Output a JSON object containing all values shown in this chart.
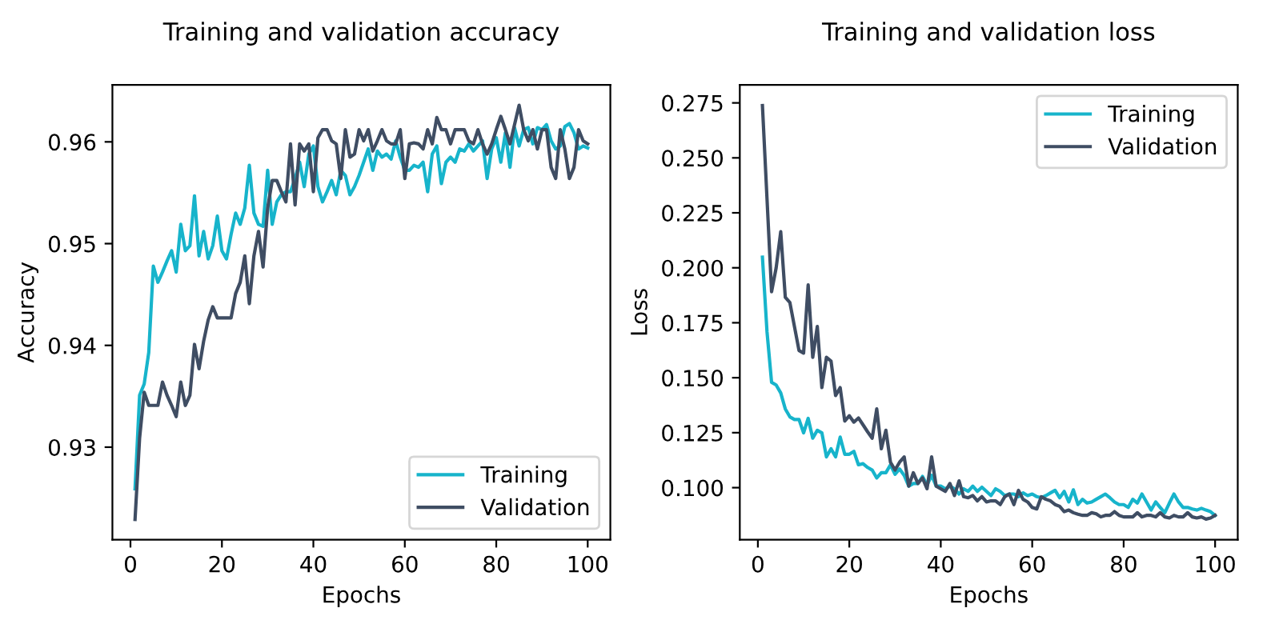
{
  "chart_data": [
    {
      "type": "line",
      "title": "Training and validation accuracy",
      "xlabel": "Epochs",
      "ylabel": "Accuracy",
      "x": [
        1,
        2,
        3,
        4,
        5,
        6,
        7,
        8,
        9,
        10,
        11,
        12,
        13,
        14,
        15,
        16,
        17,
        18,
        19,
        20,
        21,
        22,
        23,
        24,
        25,
        26,
        27,
        28,
        29,
        30,
        31,
        32,
        33,
        34,
        35,
        36,
        37,
        38,
        39,
        40,
        41,
        42,
        43,
        44,
        45,
        46,
        47,
        48,
        49,
        50,
        51,
        52,
        53,
        54,
        55,
        56,
        57,
        58,
        59,
        60,
        61,
        62,
        63,
        64,
        65,
        66,
        67,
        68,
        69,
        70,
        71,
        72,
        73,
        74,
        75,
        76,
        77,
        78,
        79,
        80,
        81,
        82,
        83,
        84,
        85,
        86,
        87,
        88,
        89,
        90,
        91,
        92,
        93,
        94,
        95,
        96,
        97,
        98,
        99,
        100
      ],
      "xlim": [
        -3.95,
        104.95
      ],
      "xticks": [
        0,
        20,
        40,
        60,
        80,
        100
      ],
      "ylim": [
        0.9209,
        0.9656
      ],
      "yticks": [
        0.93,
        0.94,
        0.95,
        0.96
      ],
      "legend": "bottom right",
      "grid": false,
      "line_style": "solid",
      "marker": "none",
      "series": [
        {
          "name": "Training",
          "color": "#17b4cb",
          "values": [
            0.9259,
            0.9351,
            0.9362,
            0.9393,
            0.9478,
            0.9462,
            0.9472,
            0.9483,
            0.9493,
            0.9472,
            0.9519,
            0.9493,
            0.9498,
            0.9547,
            0.9488,
            0.9512,
            0.9485,
            0.9498,
            0.9527,
            0.9493,
            0.9485,
            0.9509,
            0.953,
            0.9519,
            0.9535,
            0.9577,
            0.953,
            0.9519,
            0.9517,
            0.9572,
            0.9519,
            0.9541,
            0.9548,
            0.9551,
            0.9551,
            0.9564,
            0.958,
            0.9556,
            0.9588,
            0.9596,
            0.9556,
            0.9541,
            0.9551,
            0.9562,
            0.9548,
            0.9572,
            0.9567,
            0.9548,
            0.9556,
            0.9567,
            0.958,
            0.9593,
            0.9572,
            0.9591,
            0.9585,
            0.9588,
            0.9583,
            0.9601,
            0.9585,
            0.9572,
            0.9572,
            0.9577,
            0.9575,
            0.958,
            0.9551,
            0.9588,
            0.9596,
            0.9559,
            0.958,
            0.9585,
            0.958,
            0.9593,
            0.9591,
            0.9598,
            0.9591,
            0.9596,
            0.9601,
            0.9564,
            0.9593,
            0.9604,
            0.958,
            0.9609,
            0.9575,
            0.9614,
            0.9596,
            0.9612,
            0.9614,
            0.9598,
            0.9614,
            0.9612,
            0.9617,
            0.9601,
            0.9593,
            0.9596,
            0.9615,
            0.9618,
            0.9609,
            0.9593,
            0.9596,
            0.9594
          ]
        },
        {
          "name": "Validation",
          "color": "#3f4d63",
          "values": [
            0.9229,
            0.9309,
            0.9354,
            0.9341,
            0.9341,
            0.9341,
            0.9364,
            0.9351,
            0.9341,
            0.933,
            0.9364,
            0.9341,
            0.9351,
            0.9401,
            0.9377,
            0.9404,
            0.9425,
            0.9438,
            0.9427,
            0.9427,
            0.9427,
            0.9427,
            0.9451,
            0.9462,
            0.9488,
            0.9441,
            0.9488,
            0.9512,
            0.9477,
            0.9535,
            0.9562,
            0.9562,
            0.9551,
            0.9541,
            0.9598,
            0.9538,
            0.9598,
            0.9591,
            0.9598,
            0.9551,
            0.9604,
            0.9612,
            0.9612,
            0.9601,
            0.9598,
            0.9564,
            0.9612,
            0.9585,
            0.9588,
            0.9612,
            0.9601,
            0.9612,
            0.9591,
            0.9601,
            0.9612,
            0.9601,
            0.9598,
            0.9598,
            0.9612,
            0.9564,
            0.9598,
            0.9599,
            0.9598,
            0.9593,
            0.9612,
            0.9598,
            0.9624,
            0.9612,
            0.9612,
            0.9598,
            0.9612,
            0.9612,
            0.9612,
            0.9601,
            0.9598,
            0.9612,
            0.9598,
            0.9588,
            0.9598,
            0.9612,
            0.9625,
            0.9612,
            0.9598,
            0.9617,
            0.9636,
            0.9612,
            0.9601,
            0.9612,
            0.9593,
            0.9612,
            0.9612,
            0.9575,
            0.9564,
            0.9612,
            0.9593,
            0.9564,
            0.9575,
            0.9612,
            0.9601,
            0.9598
          ]
        }
      ]
    },
    {
      "type": "line",
      "title": "Training and validation loss",
      "xlabel": "Epochs",
      "ylabel": "Loss",
      "x": [
        1,
        2,
        3,
        4,
        5,
        6,
        7,
        8,
        9,
        10,
        11,
        12,
        13,
        14,
        15,
        16,
        17,
        18,
        19,
        20,
        21,
        22,
        23,
        24,
        25,
        26,
        27,
        28,
        29,
        30,
        31,
        32,
        33,
        34,
        35,
        36,
        37,
        38,
        39,
        40,
        41,
        42,
        43,
        44,
        45,
        46,
        47,
        48,
        49,
        50,
        51,
        52,
        53,
        54,
        55,
        56,
        57,
        58,
        59,
        60,
        61,
        62,
        63,
        64,
        65,
        66,
        67,
        68,
        69,
        70,
        71,
        72,
        73,
        74,
        75,
        76,
        77,
        78,
        79,
        80,
        81,
        82,
        83,
        84,
        85,
        86,
        87,
        88,
        89,
        90,
        91,
        92,
        93,
        94,
        95,
        96,
        97,
        98,
        99,
        100
      ],
      "xlim": [
        -3.95,
        104.95
      ],
      "xticks": [
        0,
        20,
        40,
        60,
        80,
        100
      ],
      "ylim": [
        0.0763,
        0.2832
      ],
      "yticks": [
        {
          "value": 0.1,
          "label": "0.100"
        },
        {
          "value": 0.125,
          "label": "0.125"
        },
        {
          "value": 0.15,
          "label": "0.150"
        },
        {
          "value": 0.175,
          "label": "0.175"
        },
        {
          "value": 0.2,
          "label": "0.200"
        },
        {
          "value": 0.225,
          "label": "0.225"
        },
        {
          "value": 0.25,
          "label": "0.250"
        },
        {
          "value": 0.275,
          "label": "0.275"
        }
      ],
      "legend": "top right",
      "grid": false,
      "line_style": "solid",
      "marker": "none",
      "series": [
        {
          "name": "Training",
          "color": "#17b4cb",
          "values": [
            0.2048,
            0.1709,
            0.1479,
            0.1467,
            0.1431,
            0.1358,
            0.1322,
            0.131,
            0.131,
            0.1249,
            0.1315,
            0.1225,
            0.1261,
            0.1249,
            0.114,
            0.1177,
            0.114,
            0.123,
            0.1152,
            0.1152,
            0.1165,
            0.1104,
            0.1109,
            0.1092,
            0.108,
            0.1044,
            0.1068,
            0.1068,
            0.1104,
            0.1061,
            0.1085,
            0.1056,
            0.1007,
            0.1019,
            0.1019,
            0.1051,
            0.1012,
            0.1056,
            0.1007,
            0.1007,
            0.0995,
            0.1007,
            0.0995,
            0.0971,
            0.0995,
            0.0983,
            0.1007,
            0.0983,
            0.1002,
            0.0983,
            0.0964,
            0.0995,
            0.0983,
            0.0964,
            0.0971,
            0.0971,
            0.0959,
            0.0976,
            0.0964,
            0.0971,
            0.0959,
            0.0954,
            0.0964,
            0.0976,
            0.0988,
            0.0954,
            0.0983,
            0.0935,
            0.099,
            0.0923,
            0.0947,
            0.093,
            0.0935,
            0.0947,
            0.0959,
            0.0971,
            0.0954,
            0.0935,
            0.0923,
            0.0923,
            0.091,
            0.0947,
            0.093,
            0.0971,
            0.0935,
            0.0898,
            0.0935,
            0.091,
            0.0886,
            0.093,
            0.0971,
            0.0935,
            0.091,
            0.091,
            0.0903,
            0.0898,
            0.0906,
            0.0898,
            0.0891,
            0.0874
          ]
        },
        {
          "name": "Validation",
          "color": "#3f4d63",
          "values": [
            0.2738,
            0.2314,
            0.1891,
            0.2,
            0.2164,
            0.1866,
            0.1842,
            0.1733,
            0.1624,
            0.1612,
            0.1922,
            0.1593,
            0.1733,
            0.1455,
            0.1593,
            0.1576,
            0.1419,
            0.1455,
            0.1303,
            0.1327,
            0.1298,
            0.1317,
            0.1286,
            0.1254,
            0.1225,
            0.1358,
            0.1177,
            0.1261,
            0.1116,
            0.108,
            0.1116,
            0.114,
            0.1007,
            0.1068,
            0.1019,
            0.1044,
            0.0995,
            0.114,
            0.1007,
            0.0995,
            0.0983,
            0.1019,
            0.0964,
            0.1031,
            0.0959,
            0.0954,
            0.0964,
            0.094,
            0.0959,
            0.0935,
            0.094,
            0.094,
            0.0923,
            0.0959,
            0.0971,
            0.0923,
            0.0988,
            0.0947,
            0.0935,
            0.091,
            0.0903,
            0.0959,
            0.0947,
            0.094,
            0.0923,
            0.0915,
            0.0891,
            0.0898,
            0.0886,
            0.0879,
            0.0874,
            0.0874,
            0.0886,
            0.0881,
            0.0867,
            0.0874,
            0.0874,
            0.0891,
            0.0874,
            0.0867,
            0.0867,
            0.0867,
            0.0886,
            0.0867,
            0.0874,
            0.0874,
            0.0867,
            0.0886,
            0.0867,
            0.0862,
            0.0874,
            0.0867,
            0.0867,
            0.0886,
            0.0867,
            0.0862,
            0.0867,
            0.0857,
            0.0862,
            0.0874
          ]
        }
      ]
    }
  ]
}
